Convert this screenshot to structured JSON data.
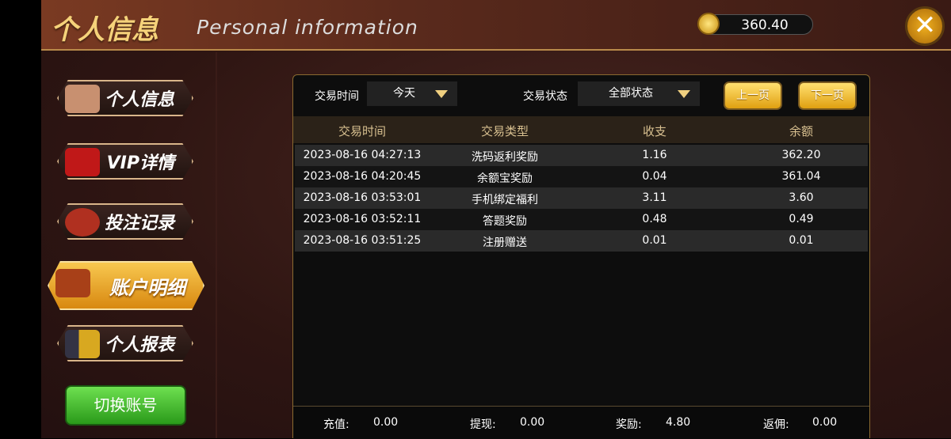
{
  "header": {
    "title_cn": "个人信息",
    "title_en": "Personal information",
    "balance": "360.40"
  },
  "sidebar": {
    "items": [
      {
        "label": "个人信息",
        "icon": "lady-avatar-icon",
        "active": false
      },
      {
        "label": "VIP详情",
        "icon": "vip-card-icon",
        "active": false
      },
      {
        "label": "投注记录",
        "icon": "chips-icon",
        "active": false
      },
      {
        "label": "账户明细",
        "icon": "wallet-icon",
        "active": true
      },
      {
        "label": "个人报表",
        "icon": "chart-coins-icon",
        "active": false
      }
    ],
    "switch_account": "切换账号"
  },
  "filters": {
    "time_label": "交易时间",
    "time_value": "今天",
    "status_label": "交易状态",
    "status_value": "全部状态",
    "prev": "上一页",
    "next": "下一页"
  },
  "table": {
    "columns": [
      "交易时间",
      "交易类型",
      "收支",
      "余额"
    ],
    "rows": [
      [
        "2023-08-16 04:27:13",
        "洗码返利奖励",
        "1.16",
        "362.20"
      ],
      [
        "2023-08-16 04:20:45",
        "余额宝奖励",
        "0.04",
        "361.04"
      ],
      [
        "2023-08-16 03:53:01",
        "手机绑定福利",
        "3.11",
        "3.60"
      ],
      [
        "2023-08-16 03:52:11",
        "答题奖励",
        "0.48",
        "0.49"
      ],
      [
        "2023-08-16 03:51:25",
        "注册赠送",
        "0.01",
        "0.01"
      ]
    ]
  },
  "summary": [
    {
      "label": "充值:",
      "value": "0.00"
    },
    {
      "label": "提现:",
      "value": "0.00"
    },
    {
      "label": "奖励:",
      "value": "4.80"
    },
    {
      "label": "返佣:",
      "value": "0.00"
    }
  ],
  "colors": {
    "accent": "#f0b020",
    "active_tab": "#e8a020",
    "green_button": "#3aaa22"
  }
}
